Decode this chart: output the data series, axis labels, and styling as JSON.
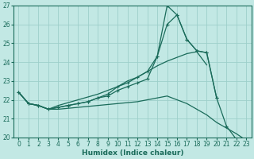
{
  "background_color": "#c2e8e4",
  "grid_color": "#9dcfca",
  "line_color": "#1a6b5a",
  "xlabel": "Humidex (Indice chaleur)",
  "xlim": [
    -0.5,
    23.5
  ],
  "ylim": [
    20,
    27
  ],
  "xticks": [
    0,
    1,
    2,
    3,
    4,
    5,
    6,
    7,
    8,
    9,
    10,
    11,
    12,
    13,
    14,
    15,
    16,
    17,
    18,
    19,
    20,
    21,
    22,
    23
  ],
  "yticks": [
    20,
    21,
    22,
    23,
    24,
    25,
    26,
    27
  ],
  "line_spike_x": [
    0,
    1,
    2,
    3,
    4,
    5,
    6,
    7,
    8,
    9,
    10,
    11,
    12,
    13,
    14,
    15,
    16,
    17,
    18,
    19,
    20
  ],
  "line_spike_y": [
    22.4,
    21.8,
    21.7,
    21.5,
    21.6,
    21.7,
    21.8,
    21.9,
    22.1,
    22.3,
    22.7,
    22.9,
    23.2,
    23.5,
    24.3,
    27.0,
    26.5,
    25.2,
    24.6,
    24.5,
    22.1
  ],
  "line_mid_x": [
    0,
    1,
    2,
    3,
    4,
    5,
    6,
    7,
    8,
    9,
    10,
    11,
    12,
    13,
    14,
    15,
    16,
    17,
    18,
    19,
    20,
    21,
    22
  ],
  "line_mid_y": [
    22.4,
    21.8,
    21.7,
    21.5,
    21.6,
    21.7,
    21.8,
    21.9,
    22.1,
    22.2,
    22.5,
    22.7,
    22.9,
    23.1,
    24.3,
    26.0,
    26.5,
    25.2,
    24.6,
    24.5,
    22.1,
    20.6,
    19.9
  ],
  "line_diag_x": [
    0,
    1,
    2,
    3,
    4,
    5,
    6,
    7,
    8,
    9,
    10,
    11,
    12,
    13,
    14,
    15,
    16,
    17,
    18,
    19
  ],
  "line_diag_y": [
    22.4,
    21.8,
    21.7,
    21.5,
    21.7,
    21.85,
    22.0,
    22.15,
    22.3,
    22.5,
    22.7,
    23.0,
    23.2,
    23.5,
    23.8,
    24.05,
    24.25,
    24.45,
    24.55,
    23.85
  ],
  "line_bot_x": [
    0,
    1,
    2,
    3,
    4,
    5,
    6,
    7,
    8,
    9,
    10,
    11,
    12,
    13,
    14,
    15,
    16,
    17,
    18,
    19,
    20,
    21,
    22,
    23
  ],
  "line_bot_y": [
    22.4,
    21.8,
    21.7,
    21.5,
    21.5,
    21.55,
    21.6,
    21.65,
    21.7,
    21.75,
    21.8,
    21.85,
    21.9,
    22.0,
    22.1,
    22.2,
    22.0,
    21.8,
    21.5,
    21.2,
    20.8,
    20.5,
    20.2,
    19.85
  ]
}
